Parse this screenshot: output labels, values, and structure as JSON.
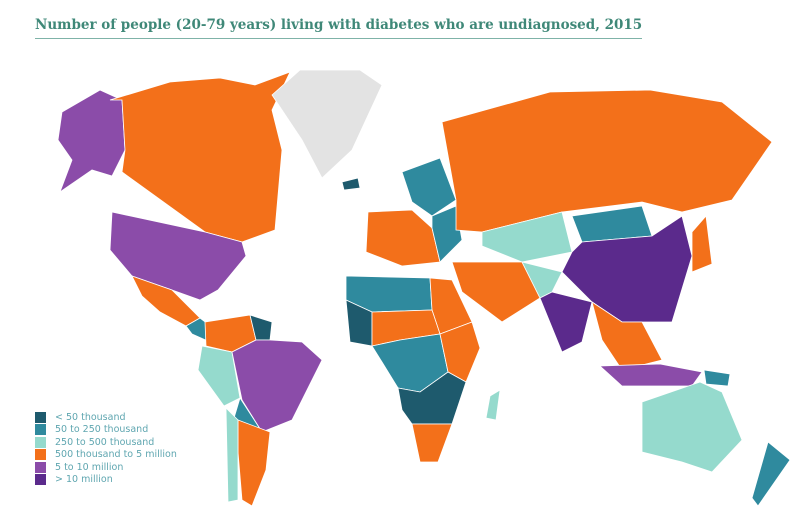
{
  "title": "Number of people (20-79 years) living with diabetes who are undiagnosed, 2015",
  "colors": {
    "c0": "#1e5a6d",
    "c1": "#2f8a9e",
    "c2": "#95dacd",
    "c3": "#f3701a",
    "c4": "#8b4ca9",
    "c5": "#5b2a8c",
    "nodata": "#e3e3e3"
  },
  "legend": [
    {
      "key": "c0",
      "label": "< 50 thousand"
    },
    {
      "key": "c1",
      "label": "50 to 250 thousand"
    },
    {
      "key": "c2",
      "label": "250 to 500 thousand"
    },
    {
      "key": "c3",
      "label": "500 thousand to 5 million"
    },
    {
      "key": "c4",
      "label": "5 to 10 million"
    },
    {
      "key": "c5",
      "label": "> 10 million"
    }
  ],
  "regions": [
    {
      "name": "alaska",
      "cat": "c4"
    },
    {
      "name": "canada",
      "cat": "c3"
    },
    {
      "name": "greenland",
      "cat": "nodata"
    },
    {
      "name": "usa",
      "cat": "c4"
    },
    {
      "name": "mexico",
      "cat": "c3"
    },
    {
      "name": "central-america",
      "cat": "c1"
    },
    {
      "name": "colombia-venezuela",
      "cat": "c3"
    },
    {
      "name": "guianas",
      "cat": "c0"
    },
    {
      "name": "peru-ecuador",
      "cat": "c2"
    },
    {
      "name": "brazil",
      "cat": "c4"
    },
    {
      "name": "bolivia-paraguay",
      "cat": "c1"
    },
    {
      "name": "argentina",
      "cat": "c3"
    },
    {
      "name": "chile",
      "cat": "c2"
    },
    {
      "name": "iceland",
      "cat": "c0"
    },
    {
      "name": "scandinavia",
      "cat": "c1"
    },
    {
      "name": "western-europe",
      "cat": "c3"
    },
    {
      "name": "eastern-europe",
      "cat": "c1"
    },
    {
      "name": "russia",
      "cat": "c3"
    },
    {
      "name": "central-asia",
      "cat": "c2"
    },
    {
      "name": "mongolia",
      "cat": "c1"
    },
    {
      "name": "china",
      "cat": "c5"
    },
    {
      "name": "middle-east",
      "cat": "c3"
    },
    {
      "name": "afghanistan-region",
      "cat": "c2"
    },
    {
      "name": "india",
      "cat": "c5"
    },
    {
      "name": "north-africa",
      "cat": "c1"
    },
    {
      "name": "egypt-sudan",
      "cat": "c3"
    },
    {
      "name": "west-africa",
      "cat": "c0"
    },
    {
      "name": "sahel",
      "cat": "c3"
    },
    {
      "name": "central-africa",
      "cat": "c1"
    },
    {
      "name": "east-africa",
      "cat": "c3"
    },
    {
      "name": "southern-africa",
      "cat": "c0"
    },
    {
      "name": "south-africa",
      "cat": "c3"
    },
    {
      "name": "madagascar",
      "cat": "c2"
    },
    {
      "name": "southeast-asia",
      "cat": "c3"
    },
    {
      "name": "indonesia",
      "cat": "c4"
    },
    {
      "name": "japan",
      "cat": "c3"
    },
    {
      "name": "papua",
      "cat": "c1"
    },
    {
      "name": "australia",
      "cat": "c2"
    },
    {
      "name": "new-zealand",
      "cat": "c1"
    }
  ]
}
